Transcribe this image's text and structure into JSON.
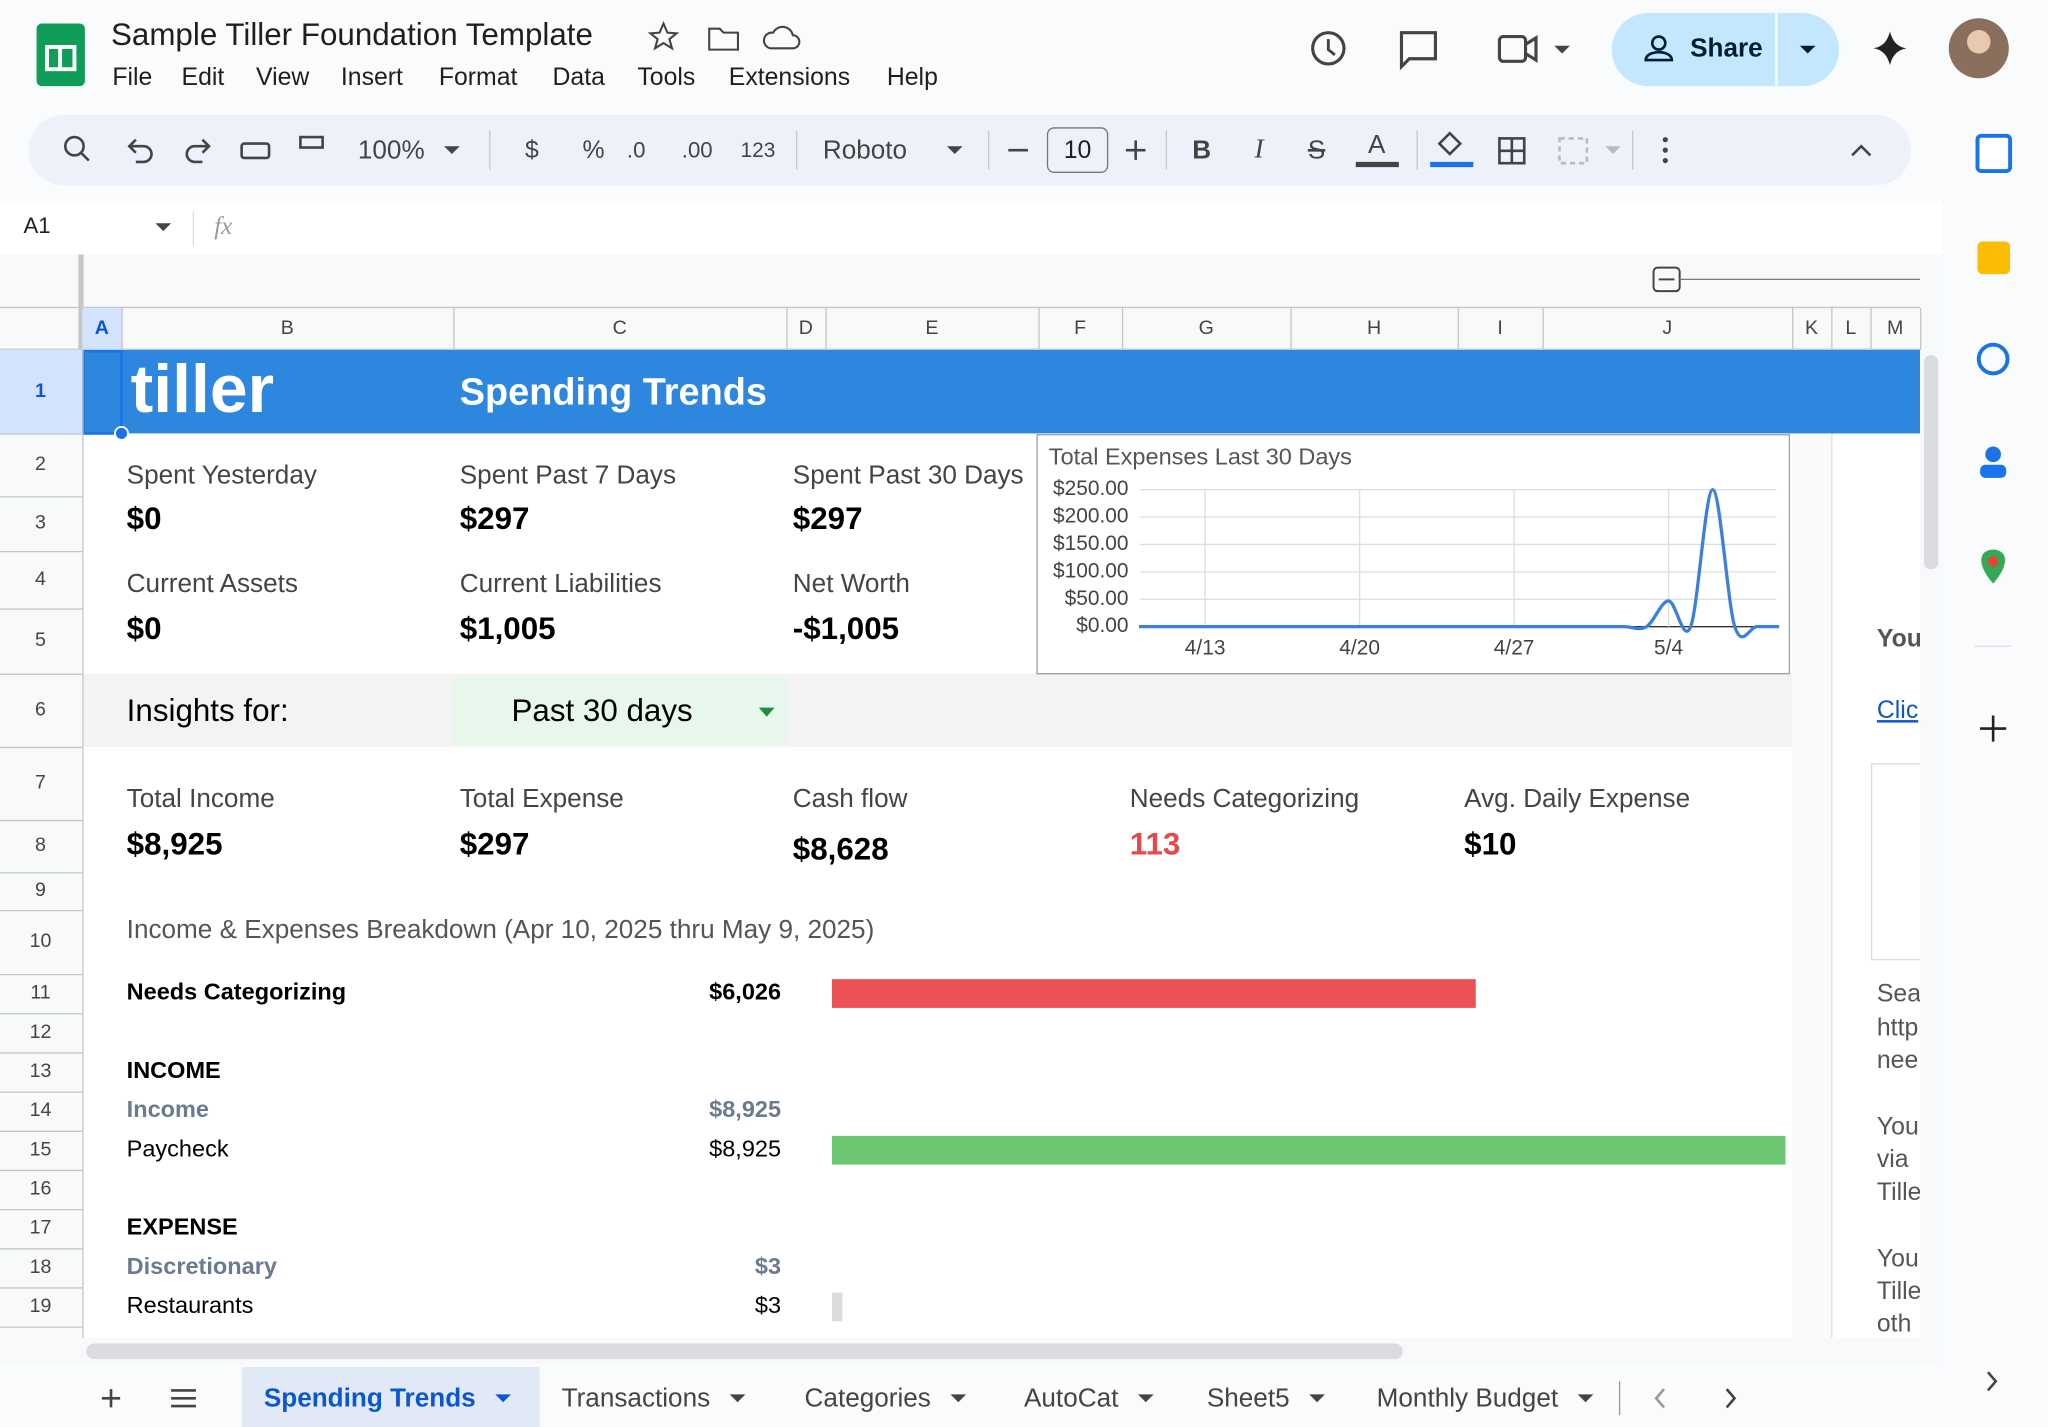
{
  "header": {
    "title": "Sample Tiller Foundation Template",
    "menu": [
      "File",
      "Edit",
      "View",
      "Insert",
      "Format",
      "Data",
      "Tools",
      "Extensions",
      "Help"
    ],
    "share": "Share"
  },
  "toolbar": {
    "zoom": "100%",
    "currency": "$",
    "percent": "%",
    "decrease_decimals": ".0",
    "increase_decimals": ".00",
    "number_format": "123",
    "font": "Roboto",
    "font_size": "10"
  },
  "formula_bar": {
    "cell": "A1",
    "fx": "fx"
  },
  "columns": [
    "A",
    "B",
    "C",
    "D",
    "E",
    "F",
    "G",
    "H",
    "I",
    "J",
    "K",
    "L",
    "M"
  ],
  "rows": [
    "1",
    "2",
    "3",
    "4",
    "5",
    "6",
    "7",
    "8",
    "9",
    "10",
    "11",
    "12",
    "13",
    "14",
    "15",
    "16",
    "17",
    "18",
    "19"
  ],
  "sheet": {
    "logo": "tiller",
    "title": "Spending Trends",
    "summary": [
      {
        "label": "Spent Yesterday",
        "value": "$0"
      },
      {
        "label": "Spent Past 7 Days",
        "value": "$297"
      },
      {
        "label": "Spent Past 30 Days",
        "value": "$297"
      },
      {
        "label": "Current Assets",
        "value": "$0"
      },
      {
        "label": "Current Liabilities",
        "value": "$1,005"
      },
      {
        "label": "Net Worth",
        "value": "-$1,005"
      }
    ],
    "insights_label": "Insights for:",
    "insights_period": "Past 30 days",
    "metrics": [
      {
        "label": "Total Income",
        "value": "$8,925",
        "color": "#000000"
      },
      {
        "label": "Total Expense",
        "value": "$297",
        "color": "#000000"
      },
      {
        "label": "Cash flow",
        "value": "$8,628",
        "color": "#000000"
      },
      {
        "label": "Needs Categorizing",
        "value": "113",
        "color": "#e8484a"
      },
      {
        "label": "Avg. Daily Expense",
        "value": "$10",
        "color": "#000000"
      }
    ],
    "breakdown_title": "Income & Expenses Breakdown (Apr 10, 2025 thru May 9, 2025)",
    "breakdown": [
      {
        "label": "Needs Categorizing",
        "value": 6026,
        "value_label": "$6,026",
        "style": "total",
        "bar_color": "#ec5255"
      },
      {
        "label": "INCOME",
        "style": "section"
      },
      {
        "label": "Income",
        "value": 8925,
        "value_label": "$8,925",
        "style": "group"
      },
      {
        "label": "Paycheck",
        "value": 8925,
        "value_label": "$8,925",
        "style": "item",
        "bar_color": "#6cc66f"
      },
      {
        "label": "EXPENSE",
        "style": "section"
      },
      {
        "label": "Discretionary",
        "value": 3,
        "value_label": "$3",
        "style": "group"
      },
      {
        "label": "Restaurants",
        "value": 3,
        "value_label": "$3",
        "style": "item",
        "bar_color": "#dcdcdc"
      }
    ]
  },
  "chart_data": {
    "type": "line",
    "title": "Total Expenses Last 30 Days",
    "x": [
      null,
      null,
      null,
      "4/13",
      null,
      null,
      null,
      null,
      null,
      null,
      "4/20",
      null,
      null,
      null,
      null,
      null,
      null,
      "4/27",
      null,
      null,
      null,
      null,
      null,
      null,
      "5/4",
      null,
      null,
      null,
      null,
      null
    ],
    "values": [
      0,
      0,
      0,
      0,
      0,
      0,
      0,
      0,
      0,
      0,
      0,
      0,
      0,
      0,
      0,
      0,
      0,
      0,
      0,
      0,
      0,
      0,
      0,
      0,
      47,
      0,
      250,
      0,
      0,
      0
    ],
    "color": "#3b7fe0",
    "ylim": [
      0,
      250
    ],
    "yticks": [
      {
        "value": 0,
        "label": "$0.00"
      },
      {
        "value": 50,
        "label": "$50.00"
      },
      {
        "value": 100,
        "label": "$100.00"
      },
      {
        "value": 150,
        "label": "$150.00"
      },
      {
        "value": 200,
        "label": "$200.00"
      },
      {
        "value": 250,
        "label": "$250.00"
      }
    ],
    "grid": true
  },
  "sidebar": {
    "lines": [
      "You",
      "Clic",
      "Sea",
      "http",
      "nee",
      "You",
      "via",
      "Tille",
      "You",
      "Tille",
      "oth"
    ]
  },
  "tabs": [
    "Spending Trends",
    "Transactions",
    "Categories",
    "AutoCat",
    "Sheet5",
    "Monthly Budget"
  ]
}
